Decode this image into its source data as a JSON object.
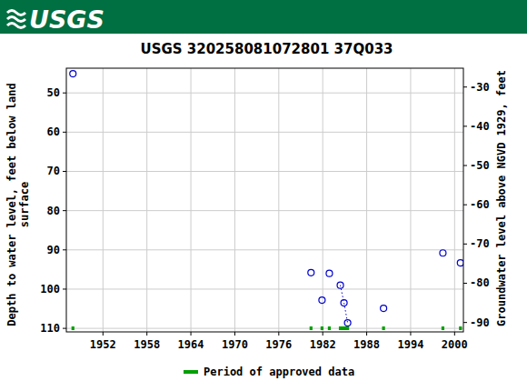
{
  "header": {
    "logo": "USGS"
  },
  "chart_data": {
    "type": "scatter",
    "title": "USGS 320258081072801 37Q033",
    "ylabel": [
      "Depth to water level, feet below land",
      "surface"
    ],
    "y2label": "Groundwater level above NGVD 1929, feet",
    "xlim": [
      1947.0,
      2001.2
    ],
    "xticks": [
      1952,
      1958,
      1964,
      1970,
      1976,
      1982,
      1988,
      1994,
      2000
    ],
    "ylim": [
      110.9,
      43.7
    ],
    "yticks": [
      50,
      60,
      70,
      80,
      90,
      100,
      110
    ],
    "y2lim": [
      -92.4,
      -25.2
    ],
    "y2ticks": [
      -30,
      -40,
      -50,
      -60,
      -70,
      -80,
      -90
    ],
    "grid": true,
    "legend": "bottom",
    "series": [
      {
        "type": "scatter",
        "color": "#0000cc",
        "marker": "circle",
        "line_style": "dotted",
        "x": [
          1947.9,
          null,
          1980.4,
          null,
          1981.9,
          null,
          1982.9,
          null,
          1984.4,
          1984.9,
          1985.4,
          null,
          1990.3,
          null,
          1998.4,
          null,
          2000.8
        ],
        "values": [
          45.1,
          null,
          95.8,
          null,
          102.8,
          null,
          96.0,
          null,
          99.0,
          103.5,
          108.6,
          null,
          104.9,
          null,
          90.8,
          null,
          93.3
        ]
      },
      {
        "type": "period",
        "name": "Period of approved data",
        "color": "#00a000",
        "x_ranges": [
          [
            1947.7,
            1948.1
          ],
          [
            1980.2,
            1980.6
          ],
          [
            1981.7,
            1982.1
          ],
          [
            1982.7,
            1983.1
          ],
          [
            1984.2,
            1985.6
          ],
          [
            1990.1,
            1990.5
          ],
          [
            1998.2,
            1998.6
          ],
          [
            2000.6,
            2001.0
          ]
        ]
      }
    ]
  }
}
